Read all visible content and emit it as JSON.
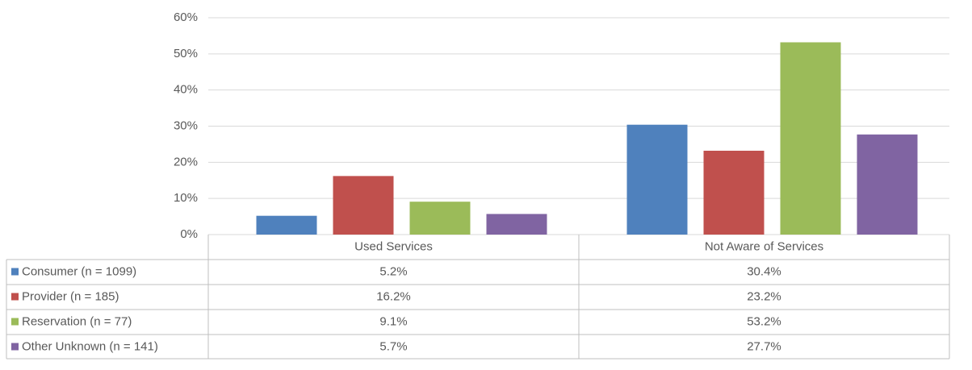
{
  "chart_data": {
    "type": "bar",
    "categories": [
      "Used Services",
      "Not Aware of Services"
    ],
    "series": [
      {
        "name": "Consumer (n = 1099)",
        "color": "#4f81bd",
        "values": [
          5.2,
          30.4
        ],
        "value_labels": [
          "5.2%",
          "30.4%"
        ]
      },
      {
        "name": "Provider (n = 185)",
        "color": "#c0504d",
        "values": [
          16.2,
          23.2
        ],
        "value_labels": [
          "16.2%",
          "23.2%"
        ]
      },
      {
        "name": "Reservation (n = 77)",
        "color": "#9bbb59",
        "values": [
          9.1,
          53.2
        ],
        "value_labels": [
          "9.1%",
          "53.2%"
        ]
      },
      {
        "name": "Other Unknown (n = 141)",
        "color": "#8064a2",
        "values": [
          5.7,
          27.7
        ],
        "value_labels": [
          "5.7%",
          "27.7%"
        ]
      }
    ],
    "ylim": [
      0,
      60
    ],
    "yticks": [
      {
        "value": 0,
        "label": "0%"
      },
      {
        "value": 10,
        "label": "10%"
      },
      {
        "value": 20,
        "label": "20%"
      },
      {
        "value": 30,
        "label": "30%"
      },
      {
        "value": 40,
        "label": "40%"
      },
      {
        "value": 50,
        "label": "50%"
      },
      {
        "value": 60,
        "label": "60%"
      }
    ],
    "grid": true
  }
}
